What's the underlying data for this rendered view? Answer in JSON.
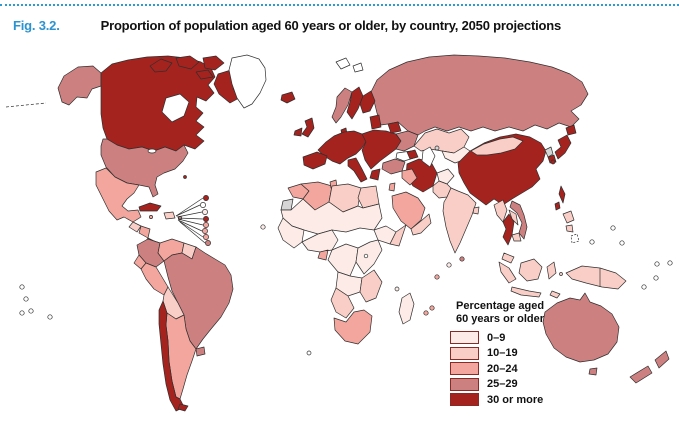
{
  "figure": {
    "label": "Fig. 3.2.",
    "title": "Proportion of population aged 60 years or older, by country, 2050 projections"
  },
  "legend": {
    "title_line1": "Percentage aged",
    "title_line2": "60 years or older",
    "items": [
      {
        "label": "0–9",
        "cat": "p0_9"
      },
      {
        "label": "10–19",
        "cat": "p10_19"
      },
      {
        "label": "20–24",
        "cat": "p20_24"
      },
      {
        "label": "25–29",
        "cat": "p25_29"
      },
      {
        "label": "30 or more",
        "cat": "p30"
      }
    ]
  },
  "category_colors": {
    "p0_9": "#fcebe6",
    "p10_19": "#f8cec6",
    "p20_24": "#f2a69d",
    "p25_29": "#cd8080",
    "p30": "#a5231e",
    "no_data": "#ffffff",
    "no_data_gray": "#d6d6d6"
  },
  "colors": {
    "accent_blue": "#2b93cf",
    "outline": "#2f2f2f",
    "background": "#ffffff"
  },
  "regions": {
    "alaska": "p25_29",
    "canada": "p30",
    "arctic1": "p30",
    "arctic2": "p30",
    "arctic3": "p30",
    "arctic4": "p30",
    "baffin": "p30",
    "greenland": "no_data",
    "iceland": "p30",
    "usa": "p25_29",
    "bermuda": "p30",
    "mexico": "p20_24",
    "guatemala": "p10_19",
    "honduras": "p20_24",
    "costa_rica": "p30",
    "panama": "p25_29",
    "cuba": "p30",
    "jamaica": "p20_24",
    "hispaniola": "p10_19",
    "puerto_rico": "p20_24",
    "trinidad": "p25_29",
    "carib1": "p30",
    "carib2": "no_data",
    "carib3": "p0_9",
    "carib4": "p30",
    "carib5": "p20_24",
    "carib6": "p20_24",
    "carib7": "p20_24",
    "carib8": "p25_29",
    "colombia": "p25_29",
    "venezuela": "p20_24",
    "guyanas": "p10_19",
    "brazil": "p25_29",
    "ecuador": "p20_24",
    "peru": "p20_24",
    "bolivia": "p10_19",
    "argentina": "p20_24",
    "uruguay": "p25_29",
    "chile": "p30",
    "tierra_del_fuego": "p30",
    "ireland": "p30",
    "uk": "p30",
    "norway": "p25_29",
    "sweden": "p30",
    "finland": "p30",
    "svalbard1": "no_data",
    "svalbard2": "no_data",
    "denmark": "p30",
    "baltics": "p30",
    "west_europe": "p30",
    "iberia": "p30",
    "italy": "p30",
    "central_east_europe": "p30",
    "greece": "p30",
    "belarus": "p30",
    "ukraine": "p25_29",
    "russia": "p25_29",
    "kazakhstan": "p10_19",
    "central_asia": "p0_9",
    "caucasus": "p30",
    "turkey": "p25_29",
    "iraq_syria": "p20_24",
    "iran": "p30",
    "saudi_arabia": "p20_24",
    "yemen_oman": "p10_19",
    "israel_jordan": "p20_24",
    "afghanistan": "p0_9",
    "pakistan": "p10_19",
    "india": "p10_19",
    "bangladesh": "p10_19",
    "sri_lanka": "p25_29",
    "china": "p30",
    "mongolia": "p10_19",
    "north_korea": "no_data_gray",
    "south_korea": "p30",
    "japan_hokkaido": "p30",
    "japan_honshu": "p30",
    "japan_kyushu": "p30",
    "ryukyu": "p30",
    "taiwan": "p30",
    "myanmar": "p10_19",
    "thailand": "p30",
    "laos": "p10_19",
    "cambodia": "p10_19",
    "vietnam": "p25_29",
    "malaysia": "p10_19",
    "philippines1": "p10_19",
    "philippines2": "p10_19",
    "sumatra": "p10_19",
    "java": "p10_19",
    "borneo": "p10_19",
    "sulawesi": "p10_19",
    "moluccas": "p10_19",
    "timor": "p10_19",
    "new_guinea": "p10_19",
    "australia": "p25_29",
    "tasmania": "p25_29",
    "nz_north": "p25_29",
    "nz_south": "p25_29",
    "morocco": "p20_24",
    "western_sahara": "no_data_gray",
    "algeria": "p20_24",
    "tunisia": "p20_24",
    "libya": "p10_19",
    "egypt": "p10_19",
    "sahel": "p0_9",
    "ethiopia": "p0_9",
    "somalia": "p10_19",
    "west_africa": "p0_9",
    "gulf_guinea": "p0_9",
    "gabon": "p20_24",
    "drc": "p0_9",
    "east_africa": "p0_9",
    "angola_zambia": "p0_9",
    "zim_moz": "p10_19",
    "namibia_botswana": "p10_19",
    "south_africa": "p20_24",
    "madagascar": "p0_9",
    "maldives": "p0_9",
    "seychelles": "p20_24",
    "mauritius": "p20_24",
    "reunion": "p20_24",
    "comoros": "p0_9",
    "cape_verde": "p0_9",
    "st_helena": "no_data",
    "aral": "no_data_gray",
    "pac1": "no_data",
    "pac2": "no_data",
    "pac3": "no_data",
    "pac4": "no_data",
    "pac5": "no_data",
    "pac6": "no_data",
    "pac7": "no_data",
    "wpac1": "no_data",
    "wpac2": "no_data",
    "wpac3": "no_data",
    "wpac4": "no_data",
    "wpac5": "no_data"
  }
}
